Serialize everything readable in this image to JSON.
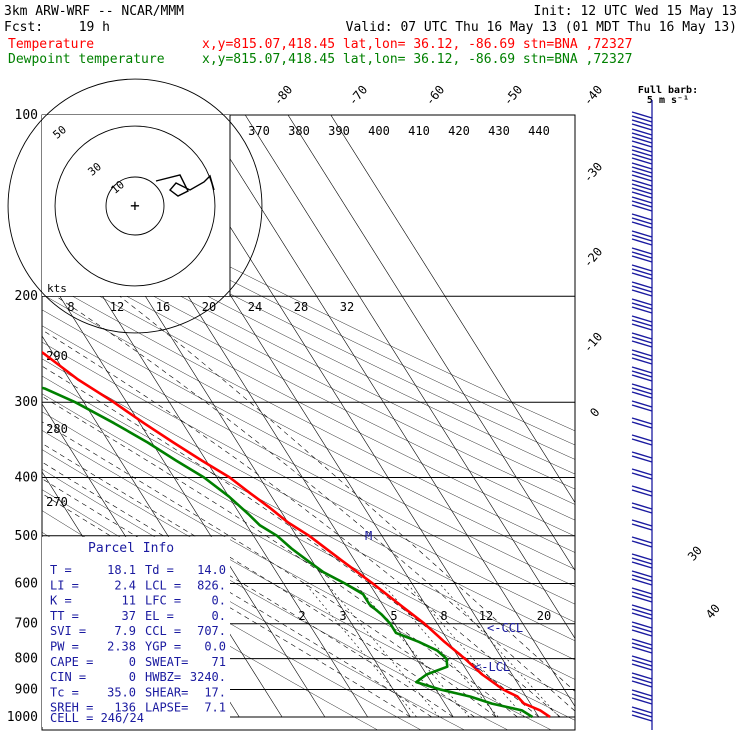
{
  "header": {
    "model": "3km ARW-WRF -- NCAR/MMM",
    "init": "Init: 12 UTC Wed 15 May 13",
    "fcst_label": "Fcst:",
    "fcst_hours": "19 h",
    "valid": "Valid: 07 UTC Thu 16 May 13 (01 MDT Thu 16 May 13)",
    "temp_name": "Temperature",
    "temp_loc": "x,y=815.07,418.45   lat,lon= 36.12, -86.69  stn=BNA ,72327",
    "dew_name": "Dewpoint temperature",
    "dew_loc": "x,y=815.07,418.45   lat,lon= 36.12, -86.69  stn=BNA ,72327"
  },
  "colors": {
    "temperature": "#ff0000",
    "dewpoint": "#008000",
    "barbs": "#1a1aa0",
    "grid": "#000000"
  },
  "chart_data": {
    "type": "line",
    "title": "Skew-T log-P sounding",
    "ylabel": "Pressure (hPa)",
    "pressure_levels": [
      "100",
      "200",
      "300",
      "400",
      "500",
      "600",
      "700",
      "800",
      "900",
      "1000"
    ],
    "isotherm_labels": [
      "-80",
      "-70",
      "-60",
      "-50",
      "-40",
      "-30",
      "-20",
      "-10",
      "0",
      "30",
      "40"
    ],
    "theta_labels": [
      "370",
      "380",
      "390",
      "400",
      "410",
      "420",
      "430",
      "440"
    ],
    "theta_labels_left": [
      "290",
      "280",
      "270"
    ],
    "mixing_ratio_labels": [
      "2",
      "3",
      "5",
      "8",
      "12",
      "20"
    ],
    "wind_speed_labels": [
      "8",
      "12",
      "16",
      "20",
      "24",
      "28",
      "32"
    ],
    "series": [
      {
        "name": "Temperature",
        "points": [
          [
            1000,
            22.6
          ],
          [
            975,
            21.3
          ],
          [
            950,
            18.5
          ],
          [
            925,
            18
          ],
          [
            900,
            15.7
          ],
          [
            850,
            13
          ],
          [
            800,
            11.3
          ],
          [
            750,
            9
          ],
          [
            700,
            7
          ],
          [
            650,
            4
          ],
          [
            600,
            0.8
          ],
          [
            550,
            -3
          ],
          [
            500,
            -7
          ],
          [
            475,
            -10
          ],
          [
            450,
            -12
          ],
          [
            425,
            -14.5
          ],
          [
            400,
            -17
          ],
          [
            375,
            -21
          ],
          [
            350,
            -25
          ],
          [
            325,
            -29
          ],
          [
            300,
            -33
          ],
          [
            275,
            -38
          ],
          [
            250,
            -42
          ],
          [
            225,
            -47
          ],
          [
            200,
            -52
          ],
          [
            190,
            -55
          ],
          [
            175,
            -58
          ],
          [
            160,
            -60
          ],
          [
            150,
            -59
          ],
          [
            140,
            -58
          ],
          [
            130,
            -60
          ],
          [
            120,
            -61
          ],
          [
            110,
            -63
          ],
          [
            100,
            -66
          ]
        ]
      },
      {
        "name": "Dewpoint temperature",
        "points": [
          [
            1000,
            18.5
          ],
          [
            975,
            17
          ],
          [
            950,
            11
          ],
          [
            925,
            7
          ],
          [
            900,
            1
          ],
          [
            875,
            -3.5
          ],
          [
            850,
            0
          ],
          [
            825,
            6
          ],
          [
            800,
            7
          ],
          [
            775,
            6
          ],
          [
            750,
            3
          ],
          [
            725,
            -1
          ],
          [
            700,
            -1
          ],
          [
            675,
            -1.7
          ],
          [
            650,
            -3
          ],
          [
            625,
            -3
          ],
          [
            600,
            -5.7
          ],
          [
            575,
            -9
          ],
          [
            550,
            -11
          ],
          [
            525,
            -13
          ],
          [
            500,
            -14.5
          ],
          [
            480,
            -17
          ],
          [
            460,
            -18
          ],
          [
            430,
            -20
          ],
          [
            400,
            -23
          ],
          [
            375,
            -27
          ],
          [
            350,
            -31
          ],
          [
            325,
            -36
          ],
          [
            300,
            -42
          ],
          [
            285,
            -47
          ],
          [
            275,
            -53
          ],
          [
            260,
            -56
          ],
          [
            250,
            -60
          ],
          [
            230,
            -62
          ],
          [
            210,
            -64
          ],
          [
            200,
            -65
          ],
          [
            185,
            -65
          ],
          [
            170,
            -67
          ],
          [
            160,
            -68
          ],
          [
            150,
            -70
          ],
          [
            140,
            -70
          ],
          [
            130,
            -72
          ],
          [
            120,
            -75
          ],
          [
            110,
            -76
          ],
          [
            100,
            -78
          ]
        ]
      }
    ],
    "hodograph": {
      "ring_labels": [
        "50",
        "30",
        "10"
      ],
      "units_label": "kts",
      "points": [
        [
          -1.5,
          0.8
        ],
        [
          0.5,
          2.5
        ],
        [
          4,
          1.3
        ],
        [
          7,
          1
        ],
        [
          10,
          2
        ]
      ]
    },
    "barb_reference": "Full barb:\n5 m s⁻¹",
    "markers": {
      "lcl_label": "<-LCL",
      "ccl_label": "<-CCL",
      "mid_marker": "M"
    }
  },
  "parcel_info": {
    "title": "Parcel Info",
    "rows": [
      [
        "T  =",
        "18.1",
        "Td =",
        "14.0"
      ],
      [
        "LI =",
        "2.4",
        "LCL =",
        "826."
      ],
      [
        "K  =",
        "11",
        "LFC =",
        "0."
      ],
      [
        "TT =",
        "37",
        "EL  =",
        "0."
      ],
      [
        "SVI =",
        "7.9",
        "CCL =",
        "707."
      ],
      [
        "PW =",
        "2.38",
        "YGP =",
        "0.0"
      ],
      [
        "CAPE =",
        "0",
        "SWEAT=",
        "71"
      ],
      [
        "CIN =",
        "0",
        "HWBZ=",
        "3240."
      ],
      [
        "Tc =",
        "35.0",
        "SHEAR=",
        "17."
      ],
      [
        "SREH =",
        "136",
        "LAPSE=",
        "7.1"
      ]
    ],
    "cell": "CELL = 246/24"
  }
}
